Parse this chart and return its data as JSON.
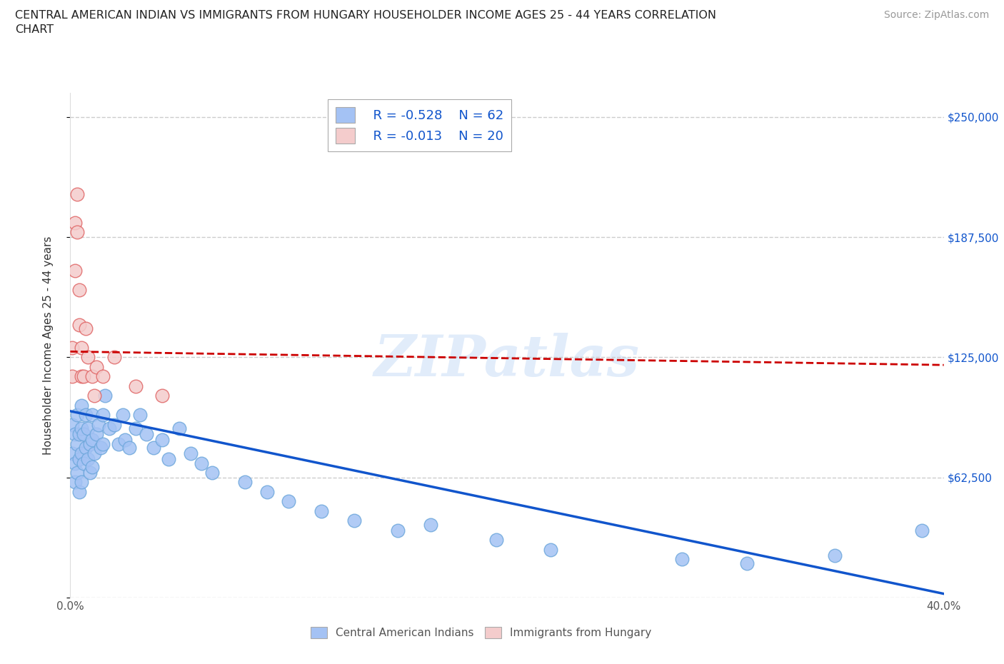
{
  "title_line1": "CENTRAL AMERICAN INDIAN VS IMMIGRANTS FROM HUNGARY HOUSEHOLDER INCOME AGES 25 - 44 YEARS CORRELATION",
  "title_line2": "CHART",
  "source": "Source: ZipAtlas.com",
  "ylabel": "Householder Income Ages 25 - 44 years",
  "legend_blue_r": "R = -0.528",
  "legend_blue_n": "N = 62",
  "legend_pink_r": "R = -0.013",
  "legend_pink_n": "N = 20",
  "xlim": [
    0.0,
    0.4
  ],
  "ylim": [
    0,
    262500
  ],
  "yticks": [
    0,
    62500,
    125000,
    187500,
    250000
  ],
  "ytick_labels": [
    "",
    "$62,500",
    "$125,000",
    "$187,500",
    "$250,000"
  ],
  "xticks": [
    0.0,
    0.05,
    0.1,
    0.15,
    0.2,
    0.25,
    0.3,
    0.35,
    0.4
  ],
  "xtick_labels": [
    "0.0%",
    "",
    "",
    "",
    "",
    "",
    "",
    "",
    "40.0%"
  ],
  "watermark": "ZIPatlas",
  "blue_color": "#a4c2f4",
  "pink_color": "#f4cccc",
  "blue_scatter_edge": "#6fa8dc",
  "pink_scatter_edge": "#e06666",
  "blue_line_color": "#1155cc",
  "pink_line_color": "#cc0000",
  "grid_color": "#cccccc",
  "blue_scatter_x": [
    0.001,
    0.001,
    0.002,
    0.002,
    0.002,
    0.003,
    0.003,
    0.003,
    0.004,
    0.004,
    0.004,
    0.005,
    0.005,
    0.005,
    0.005,
    0.006,
    0.006,
    0.007,
    0.007,
    0.008,
    0.008,
    0.009,
    0.009,
    0.01,
    0.01,
    0.01,
    0.011,
    0.012,
    0.013,
    0.014,
    0.015,
    0.015,
    0.016,
    0.018,
    0.02,
    0.022,
    0.024,
    0.025,
    0.027,
    0.03,
    0.032,
    0.035,
    0.038,
    0.042,
    0.045,
    0.05,
    0.055,
    0.06,
    0.065,
    0.08,
    0.09,
    0.1,
    0.115,
    0.13,
    0.15,
    0.165,
    0.195,
    0.22,
    0.28,
    0.31,
    0.35,
    0.39
  ],
  "blue_scatter_y": [
    90000,
    75000,
    85000,
    70000,
    60000,
    95000,
    80000,
    65000,
    85000,
    72000,
    55000,
    100000,
    88000,
    75000,
    60000,
    85000,
    70000,
    95000,
    78000,
    88000,
    72000,
    80000,
    65000,
    95000,
    82000,
    68000,
    75000,
    85000,
    90000,
    78000,
    95000,
    80000,
    105000,
    88000,
    90000,
    80000,
    95000,
    82000,
    78000,
    88000,
    95000,
    85000,
    78000,
    82000,
    72000,
    88000,
    75000,
    70000,
    65000,
    60000,
    55000,
    50000,
    45000,
    40000,
    35000,
    38000,
    30000,
    25000,
    20000,
    18000,
    22000,
    35000
  ],
  "pink_scatter_x": [
    0.001,
    0.001,
    0.002,
    0.002,
    0.003,
    0.003,
    0.004,
    0.004,
    0.005,
    0.005,
    0.006,
    0.007,
    0.008,
    0.01,
    0.011,
    0.012,
    0.015,
    0.02,
    0.03,
    0.042
  ],
  "pink_scatter_y": [
    130000,
    115000,
    195000,
    170000,
    210000,
    190000,
    160000,
    142000,
    130000,
    115000,
    115000,
    140000,
    125000,
    115000,
    105000,
    120000,
    115000,
    125000,
    110000,
    105000
  ],
  "blue_line_x0": 0.0,
  "blue_line_x1": 0.4,
  "blue_line_y0": 97000,
  "blue_line_y1": 2000,
  "pink_line_x0": 0.0,
  "pink_line_x1": 0.4,
  "pink_line_y0": 128000,
  "pink_line_y1": 121000,
  "background_color": "#ffffff"
}
